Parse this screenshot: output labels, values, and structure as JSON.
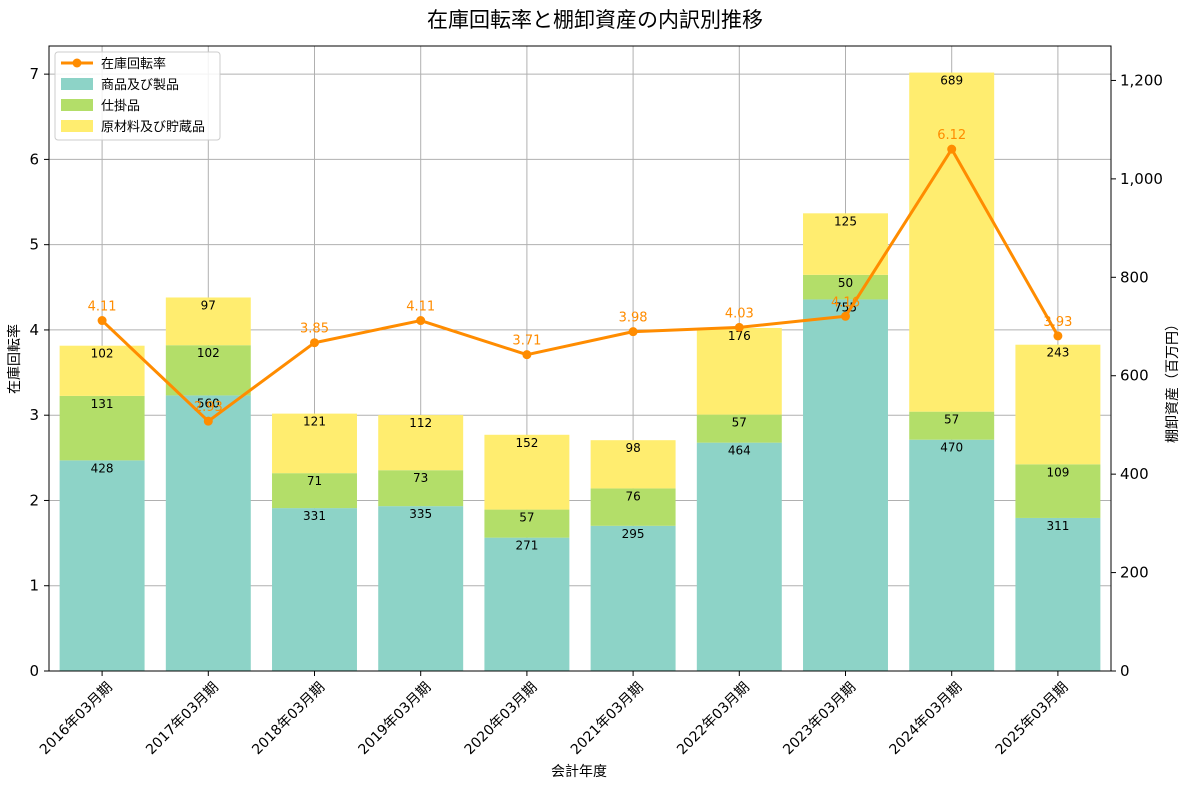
{
  "chart_data": {
    "type": "bar",
    "title": "在庫回転率と棚卸資産の内訳別推移",
    "xlabel": "会計年度",
    "ylabel_left": "在庫回転率",
    "ylabel_right": "棚卸資産（百万円）",
    "categories": [
      "2016年03月期",
      "2017年03月期",
      "2018年03月期",
      "2019年03月期",
      "2020年03月期",
      "2021年03月期",
      "2022年03月期",
      "2023年03月期",
      "2024年03月期",
      "2025年03月期"
    ],
    "series": [
      {
        "name": "商品及び製品",
        "kind": "bar",
        "axis": "right",
        "color": "#8dd3c7",
        "values": [
          428,
          560,
          331,
          335,
          271,
          295,
          464,
          755,
          470,
          311
        ]
      },
      {
        "name": "仕掛品",
        "kind": "bar",
        "axis": "right",
        "color": "#b3de69",
        "values": [
          131,
          102,
          71,
          73,
          57,
          76,
          57,
          50,
          57,
          109
        ]
      },
      {
        "name": "原材料及び貯蔵品",
        "kind": "bar",
        "axis": "right",
        "color": "#ffed6f",
        "values": [
          102,
          97,
          121,
          112,
          152,
          98,
          176,
          125,
          689,
          243
        ]
      },
      {
        "name": "在庫回転率",
        "kind": "line",
        "axis": "left",
        "color": "#ff8c00",
        "values": [
          4.11,
          2.93,
          3.85,
          4.11,
          3.71,
          3.98,
          4.03,
          4.16,
          6.12,
          3.93
        ]
      }
    ],
    "ylim_left": [
      0,
      7.33
    ],
    "yticks_left": [
      0,
      1,
      2,
      3,
      4,
      5,
      6,
      7
    ],
    "ylim_right": [
      0,
      1270
    ],
    "yticks_right": [
      0,
      200,
      400,
      600,
      800,
      1000,
      1200
    ],
    "yticklabels_right": [
      "0",
      "200",
      "400",
      "600",
      "800",
      "1,000",
      "1,200"
    ],
    "grid": true,
    "legend_position": "top-left"
  }
}
